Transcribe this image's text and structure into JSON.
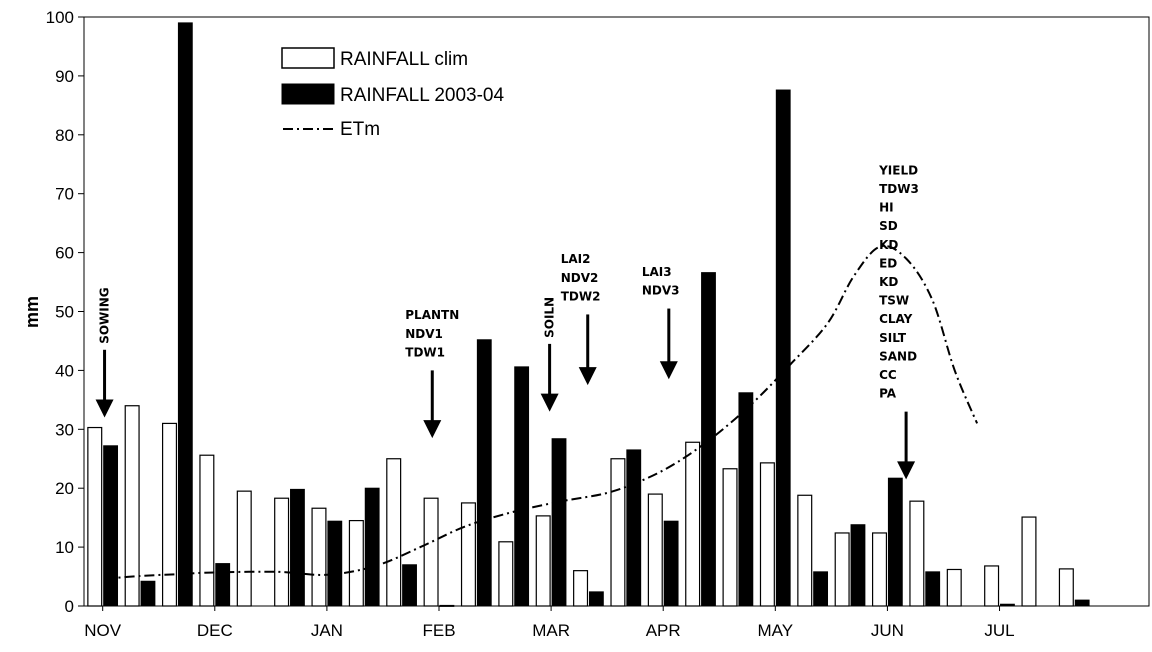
{
  "chart_data": {
    "type": "bar",
    "ylabel": "mm",
    "ylim": [
      0,
      100
    ],
    "yticks": [
      0,
      10,
      20,
      30,
      40,
      50,
      60,
      70,
      80,
      90,
      100
    ],
    "month_labels": [
      "NOV",
      "DEC",
      "JAN",
      "FEB",
      "MAR",
      "APR",
      "MAY",
      "JUN",
      "JUL"
    ],
    "periods": 27,
    "series": [
      {
        "name": "RAINFALL clim",
        "style": "open",
        "values": [
          30.3,
          34,
          31,
          25.6,
          19.5,
          18.3,
          16.6,
          14.5,
          25,
          18.3,
          17.5,
          10.9,
          15.3,
          6,
          25,
          19,
          27.8,
          23.3,
          24.3,
          18.8,
          12.4,
          12.4,
          17.8,
          6.2,
          6.8,
          15.1,
          6.3
        ]
      },
      {
        "name": "RAINFALL 2003-04",
        "style": "filled",
        "values": [
          27.2,
          4.2,
          99,
          7.2,
          0,
          19.8,
          14.4,
          20,
          7,
          0.1,
          45.2,
          40.6,
          28.4,
          2.4,
          26.5,
          14.4,
          56.6,
          36.2,
          87.6,
          5.8,
          13.8,
          21.7,
          5.8,
          0,
          0.3,
          0,
          1
        ]
      }
    ],
    "line": {
      "name": "ETm",
      "points": [
        [
          0.05,
          4.6
        ],
        [
          1,
          5.1
        ],
        [
          2,
          5.4
        ],
        [
          3,
          5.7
        ],
        [
          4.7,
          5.8
        ],
        [
          6,
          5.3
        ],
        [
          7.3,
          6.8
        ],
        [
          8.5,
          10
        ],
        [
          9.7,
          13.5
        ],
        [
          11,
          16
        ],
        [
          12.3,
          17.8
        ],
        [
          13.5,
          19.2
        ],
        [
          14.5,
          21.5
        ],
        [
          15.4,
          24.5
        ],
        [
          16.4,
          29
        ],
        [
          17.4,
          34.5
        ],
        [
          18.4,
          41
        ],
        [
          19.4,
          48
        ],
        [
          20.1,
          56
        ],
        [
          20.8,
          61
        ],
        [
          21.5,
          59
        ],
        [
          22.2,
          52
        ],
        [
          22.8,
          40
        ],
        [
          23.4,
          31
        ]
      ]
    },
    "annotations": [
      {
        "lines": [
          "SOWING"
        ],
        "vertical": true,
        "arrow_x": 0.05,
        "arrow_top": 43.5,
        "arrow_tip": 32
      },
      {
        "lines": [
          "PLANTN",
          "NDV1",
          "TDW1"
        ],
        "vertical": false,
        "arrow_x": 8.82,
        "arrow_top": 40,
        "arrow_tip": 28.5
      },
      {
        "lines": [
          "SOILN"
        ],
        "vertical": true,
        "arrow_x": 11.96,
        "arrow_top": 44.5,
        "arrow_tip": 33
      },
      {
        "lines": [
          "LAI2",
          "NDV2",
          "TDW2"
        ],
        "vertical": false,
        "arrow_x": 12.98,
        "arrow_top": 49.5,
        "arrow_tip": 37.5
      },
      {
        "lines": [
          "LAI3",
          "NDV3"
        ],
        "vertical": false,
        "arrow_x": 15.15,
        "arrow_top": 50.5,
        "arrow_tip": 38.5
      },
      {
        "lines": [
          "YIELD",
          "TDW3",
          "HI",
          "SD",
          "KD",
          "ED",
          "KD",
          "TSW",
          "CLAY",
          "SILT",
          "SAND",
          "CC",
          "PA"
        ],
        "vertical": false,
        "arrow_x": 21.5,
        "arrow_top": 33,
        "arrow_tip": 21.5
      }
    ],
    "legend_position": "top-left"
  }
}
